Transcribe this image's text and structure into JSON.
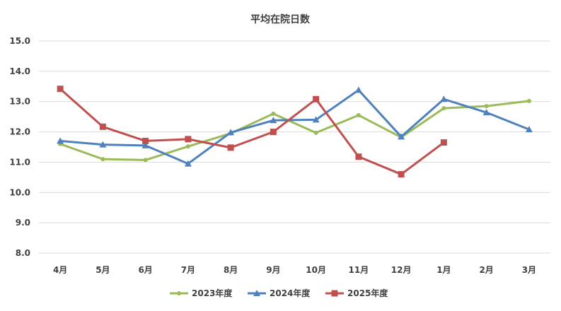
{
  "chart_data": {
    "type": "line",
    "title": "平均在院日数",
    "xlabel": "",
    "ylabel": "",
    "categories": [
      "4月",
      "5月",
      "6月",
      "7月",
      "8月",
      "9月",
      "10月",
      "11月",
      "12月",
      "1月",
      "2月",
      "3月"
    ],
    "y_ticks": [
      "8.0",
      "9.0",
      "10.0",
      "11.0",
      "12.0",
      "13.0",
      "14.0",
      "15.0"
    ],
    "ylim": [
      8.0,
      15.0
    ],
    "grid": true,
    "legend_position": "bottom",
    "series": [
      {
        "name": "2023年度",
        "color": "#9bbb59",
        "marker": "circle",
        "values": [
          11.6,
          11.1,
          11.07,
          11.52,
          11.95,
          12.6,
          11.97,
          12.55,
          11.82,
          12.78,
          12.85,
          13.02
        ]
      },
      {
        "name": "2024年度",
        "color": "#4f81bd",
        "marker": "triangle",
        "values": [
          11.7,
          11.58,
          11.55,
          10.95,
          11.98,
          12.38,
          12.4,
          13.38,
          11.84,
          13.08,
          12.64,
          12.08
        ]
      },
      {
        "name": "2025年度",
        "color": "#c0504d",
        "marker": "square",
        "values": [
          13.42,
          12.17,
          11.7,
          11.76,
          11.48,
          12.0,
          13.08,
          11.18,
          10.6,
          11.65,
          null,
          null
        ]
      }
    ]
  }
}
